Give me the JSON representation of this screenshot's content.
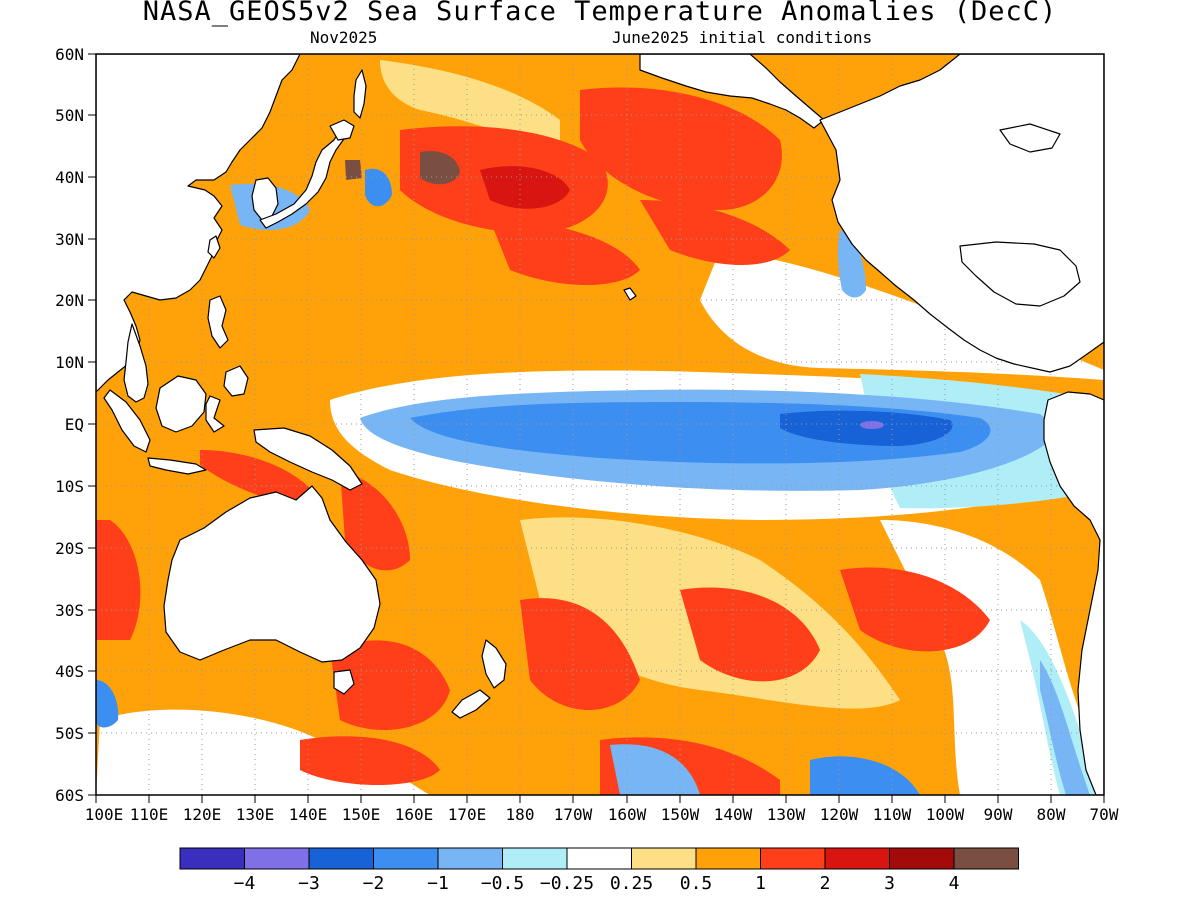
{
  "title": "NASA_GEOS5v2 Sea Surface Temperature Anomalies (DecC)",
  "subtitle_left": "Nov2025",
  "subtitle_right": "June2025 initial conditions",
  "map": {
    "lon_range": [
      100,
      290
    ],
    "lat_range": [
      -60,
      60
    ],
    "lat_ticks": [
      "60N",
      "50N",
      "40N",
      "30N",
      "20N",
      "10N",
      "EQ",
      "10S",
      "20S",
      "30S",
      "40S",
      "50S",
      "60S"
    ],
    "lon_ticks": [
      "100E",
      "110E",
      "120E",
      "130E",
      "140E",
      "150E",
      "160E",
      "170E",
      "180",
      "170W",
      "160W",
      "150W",
      "140W",
      "130W",
      "120W",
      "110W",
      "100W",
      "90W",
      "80W",
      "70W"
    ],
    "grid": "dotted",
    "land_color": "#ffffff",
    "coast_color": "#000000"
  },
  "colorbar": {
    "colors": [
      "#3a2ebf",
      "#7f70e8",
      "#1762d6",
      "#3c8ff0",
      "#78b5f5",
      "#b0eef7",
      "#ffffff",
      "#fde085",
      "#ffa20a",
      "#ff3e1a",
      "#d81510",
      "#a30a0a",
      "#7a4f41"
    ],
    "labels": [
      "−4",
      "−3",
      "−2",
      "−1",
      "−0.5",
      "−0.25",
      "0.25",
      "0.5",
      "1",
      "2",
      "3",
      "4"
    ]
  }
}
